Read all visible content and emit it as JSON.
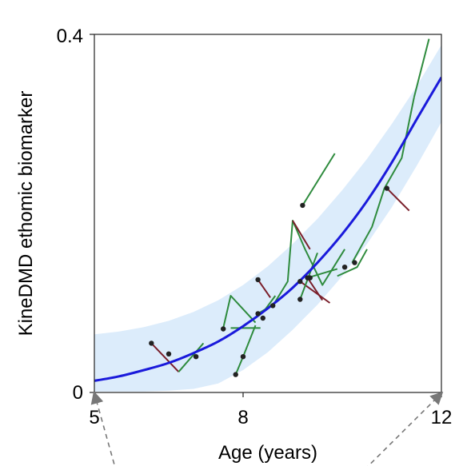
{
  "chart_data": {
    "type": "line",
    "title": "",
    "xlabel": "Age (years)",
    "ylabel": "KineDMD ethomic biomarker",
    "xlim": [
      5,
      12
    ],
    "ylim": [
      0,
      0.4
    ],
    "x_ticks": [
      "5",
      "8",
      "12"
    ],
    "y_ticks": [
      "0",
      "0.4"
    ],
    "grid": false,
    "legend": "none",
    "colors": {
      "fit": "#1a1adb",
      "band": "#dcecfb",
      "increase": "#2e8b3d",
      "decrease": "#7a1f2b",
      "point": "#222222",
      "annotation_arrow": "#777777"
    },
    "fit_curve": {
      "x": [
        5,
        5.5,
        6,
        6.5,
        7,
        7.5,
        8,
        8.5,
        9,
        9.5,
        10,
        10.5,
        11,
        11.5,
        12
      ],
      "y": [
        0.013,
        0.018,
        0.025,
        0.033,
        0.044,
        0.057,
        0.074,
        0.094,
        0.117,
        0.145,
        0.177,
        0.214,
        0.257,
        0.305,
        0.352
      ]
    },
    "confidence_band": {
      "x": [
        5,
        5.5,
        6,
        6.5,
        7,
        7.5,
        8,
        8.5,
        9,
        9.5,
        10,
        10.5,
        11,
        11.5,
        12
      ],
      "upper": [
        0.065,
        0.068,
        0.073,
        0.08,
        0.09,
        0.103,
        0.12,
        0.141,
        0.166,
        0.194,
        0.226,
        0.261,
        0.3,
        0.342,
        0.388
      ],
      "lower": [
        0.001,
        0.001,
        0.001,
        0.002,
        0.004,
        0.01,
        0.025,
        0.045,
        0.07,
        0.098,
        0.13,
        0.166,
        0.207,
        0.253,
        0.302
      ]
    },
    "trajectories": [
      {
        "trend": "decrease",
        "x": [
          6.15,
          6.7
        ],
        "y": [
          0.055,
          0.023
        ]
      },
      {
        "trend": "increase",
        "x": [
          6.7,
          7.2
        ],
        "y": [
          0.023,
          0.055
        ]
      },
      {
        "trend": "increase",
        "x": [
          7.6,
          7.75,
          8.25
        ],
        "y": [
          0.072,
          0.108,
          0.078
        ]
      },
      {
        "trend": "increase",
        "x": [
          7.75,
          8.35
        ],
        "y": [
          0.072,
          0.072
        ]
      },
      {
        "trend": "decrease",
        "x": [
          8.3,
          8.55
        ],
        "y": [
          0.126,
          0.106
        ]
      },
      {
        "trend": "increase",
        "x": [
          8.3,
          8.45,
          8.65
        ],
        "y": [
          0.088,
          0.093,
          0.108
        ]
      },
      {
        "trend": "increase",
        "x": [
          7.85,
          8.0,
          8.25
        ],
        "y": [
          0.02,
          0.04,
          0.075
        ]
      },
      {
        "trend": "increase",
        "x": [
          8.6,
          8.9,
          9.0,
          9.25,
          9.6,
          10.05
        ],
        "y": [
          0.097,
          0.124,
          0.192,
          0.16,
          0.12,
          0.16
        ]
      },
      {
        "trend": "decrease",
        "x": [
          9.0,
          9.35
        ],
        "y": [
          0.192,
          0.16
        ]
      },
      {
        "trend": "increase",
        "x": [
          9.2,
          9.85
        ],
        "y": [
          0.209,
          0.267
        ]
      },
      {
        "trend": "decrease",
        "x": [
          9.15,
          9.75
        ],
        "y": [
          0.124,
          0.1
        ]
      },
      {
        "trend": "increase",
        "x": [
          9.15,
          9.5
        ],
        "y": [
          0.104,
          0.156
        ]
      },
      {
        "trend": "decrease",
        "x": [
          9.3,
          9.6
        ],
        "y": [
          0.128,
          0.103
        ]
      },
      {
        "trend": "increase",
        "x": [
          9.3,
          9.9
        ],
        "y": [
          0.128,
          0.138
        ]
      },
      {
        "trend": "increase",
        "x": [
          9.9,
          10.3,
          10.5
        ],
        "y": [
          0.13,
          0.14,
          0.16
        ]
      },
      {
        "trend": "increase",
        "x": [
          10.2,
          10.6,
          10.85,
          11.2,
          11.45
        ],
        "y": [
          0.145,
          0.185,
          0.228,
          0.262,
          0.33
        ]
      },
      {
        "trend": "decrease",
        "x": [
          10.9,
          11.35
        ],
        "y": [
          0.228,
          0.203
        ]
      },
      {
        "trend": "increase",
        "x": [
          11.45,
          11.75
        ],
        "y": [
          0.33,
          0.395
        ]
      }
    ],
    "points": {
      "x": [
        6.15,
        6.5,
        7.05,
        7.6,
        7.85,
        8.0,
        8.3,
        8.3,
        8.4,
        8.6,
        9.2,
        9.15,
        9.15,
        9.3,
        9.35,
        10.05,
        10.25,
        10.9
      ],
      "y": [
        0.055,
        0.043,
        0.04,
        0.071,
        0.02,
        0.04,
        0.126,
        0.088,
        0.083,
        0.097,
        0.209,
        0.124,
        0.104,
        0.128,
        0.128,
        0.14,
        0.145,
        0.228
      ]
    },
    "annotation_arrows": [
      {
        "from": [
          5.4,
          -0.08
        ],
        "to": [
          5.0,
          -0.001
        ]
      },
      {
        "from": [
          10.2,
          -0.1
        ],
        "to": [
          12.0,
          -0.001
        ]
      }
    ]
  }
}
